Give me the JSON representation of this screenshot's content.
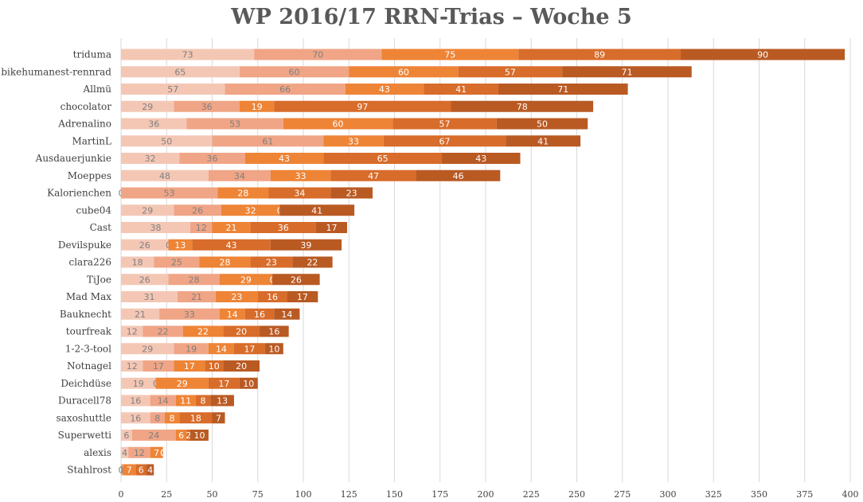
{
  "chart_data": {
    "type": "bar",
    "orientation": "horizontal",
    "stacked": true,
    "title": "WP 2016/17 RRN-Trias – Woche 5",
    "categories": [
      "triduma",
      "bikehumanest-rennrad",
      "Allmü",
      "chocolator",
      "Adrenalino",
      "MartinL",
      "Ausdauerjunkie",
      "Moeppes",
      "Kalorienchen",
      "cube04",
      "Cast",
      "Devilspuke",
      "clara226",
      "TiJoe",
      "Mad Max",
      "Bauknecht",
      "tourfreak",
      "1-2-3-tool",
      "Notnagel",
      "Deichdüse",
      "Duracell78",
      "saxoshuttle",
      "Superwetti",
      "alexis",
      "Stahlrost"
    ],
    "series": [
      {
        "color": "#F4C7B5",
        "label_color": "#7F7F7F",
        "values": [
          73,
          65,
          57,
          29,
          36,
          50,
          32,
          48,
          0,
          29,
          38,
          26,
          18,
          26,
          31,
          21,
          12,
          29,
          12,
          19,
          16,
          16,
          6,
          4,
          0
        ]
      },
      {
        "color": "#F0A586",
        "label_color": "#7F7F7F",
        "values": [
          70,
          60,
          66,
          36,
          53,
          61,
          36,
          34,
          53,
          26,
          12,
          0,
          25,
          28,
          21,
          33,
          22,
          19,
          17,
          0,
          14,
          8,
          24,
          12,
          1
        ]
      },
      {
        "color": "#EE8436",
        "label_color": "#FFFFFF",
        "values": [
          75,
          60,
          43,
          19,
          60,
          33,
          43,
          33,
          28,
          32,
          21,
          13,
          28,
          29,
          23,
          14,
          22,
          14,
          17,
          29,
          11,
          8,
          6,
          7,
          7
        ]
      },
      {
        "color": "#D86C2A",
        "label_color": "#FFFFFF",
        "values": [
          89,
          57,
          41,
          97,
          57,
          67,
          65,
          47,
          34,
          0,
          36,
          43,
          23,
          0,
          16,
          16,
          20,
          17,
          10,
          17,
          8,
          18,
          2,
          0,
          6
        ]
      },
      {
        "color": "#B95A23",
        "label_color": "#FFFFFF",
        "values": [
          90,
          71,
          71,
          78,
          50,
          41,
          43,
          46,
          23,
          41,
          17,
          39,
          22,
          26,
          17,
          14,
          16,
          10,
          20,
          10,
          13,
          7,
          10,
          0,
          4
        ]
      }
    ],
    "xlim": [
      0,
      400
    ],
    "xticks": [
      0,
      25,
      50,
      75,
      100,
      125,
      150,
      175,
      200,
      225,
      250,
      275,
      300,
      325,
      350,
      375,
      400
    ],
    "grid": "vertical",
    "legend": "none",
    "data_labels": true
  }
}
